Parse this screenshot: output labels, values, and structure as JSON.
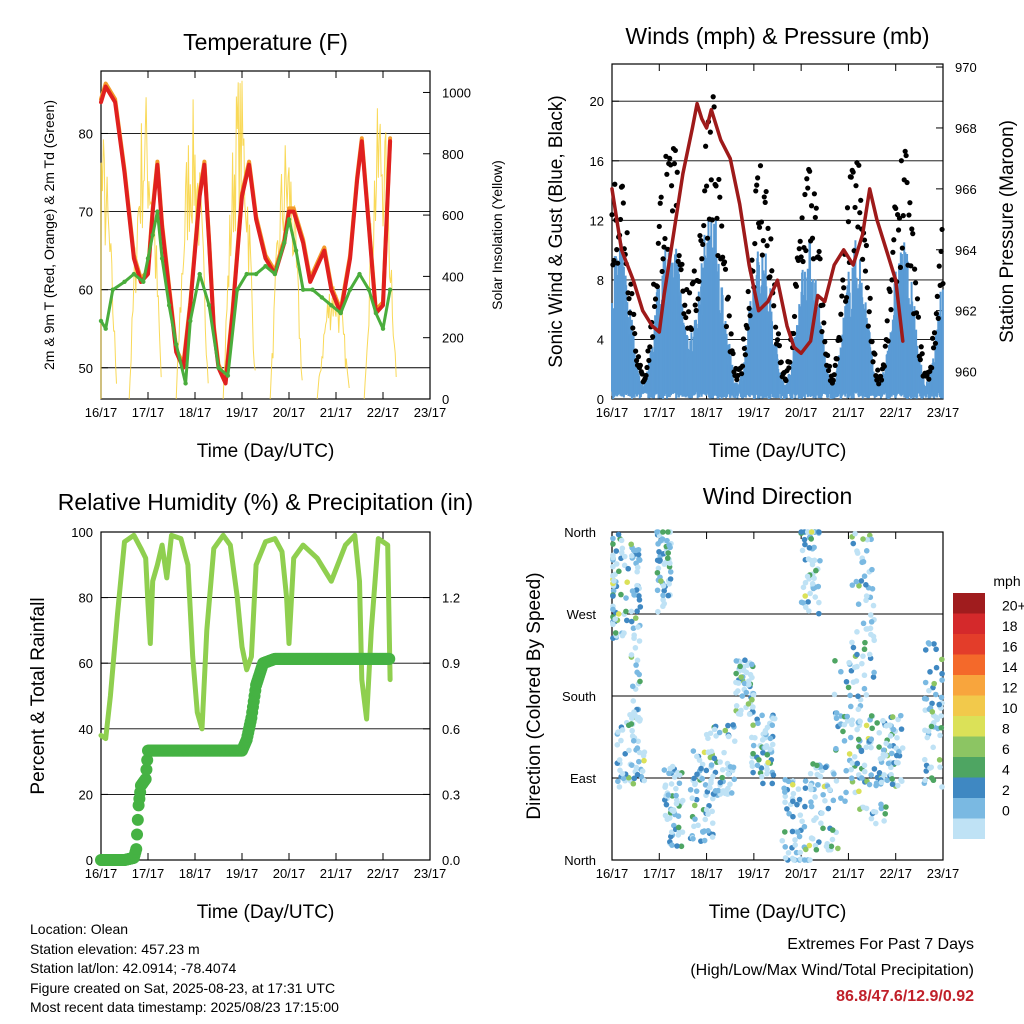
{
  "chart_data": [
    {
      "type": "line",
      "title": "Temperature (F)",
      "xlabel": "Time (Day/UTC)",
      "ylabel": "2m & 9m T (Red, Orange) & 2m Td (Green)",
      "y2label": "Solar Insolation (Yellow)",
      "xticks": [
        "16/17",
        "17/17",
        "18/17",
        "19/17",
        "20/17",
        "21/17",
        "22/17",
        "23/17"
      ],
      "ylim": [
        46,
        88
      ],
      "yticks": [
        50,
        60,
        70,
        80
      ],
      "y2lim": [
        0,
        1070
      ],
      "y2ticks": [
        0,
        200,
        400,
        600,
        800,
        1000
      ],
      "series": [
        {
          "name": "2m T",
          "color": "#e0201f",
          "values": [
            [
              0,
              84
            ],
            [
              0.1,
              86
            ],
            [
              0.3,
              84
            ],
            [
              0.5,
              75
            ],
            [
              0.7,
              64
            ],
            [
              0.85,
              61
            ],
            [
              1.0,
              62
            ],
            [
              1.1,
              70
            ],
            [
              1.2,
              76
            ],
            [
              1.3,
              68
            ],
            [
              1.45,
              60
            ],
            [
              1.6,
              52
            ],
            [
              1.75,
              50
            ],
            [
              1.9,
              58
            ],
            [
              2.1,
              72
            ],
            [
              2.2,
              76
            ],
            [
              2.3,
              66
            ],
            [
              2.4,
              55
            ],
            [
              2.5,
              50
            ],
            [
              2.65,
              48
            ],
            [
              2.8,
              57
            ],
            [
              3.0,
              72
            ],
            [
              3.15,
              76
            ],
            [
              3.3,
              69
            ],
            [
              3.5,
              64
            ],
            [
              3.7,
              62
            ],
            [
              3.9,
              66
            ],
            [
              4.0,
              70
            ],
            [
              4.1,
              70
            ],
            [
              4.3,
              66
            ],
            [
              4.45,
              61
            ],
            [
              4.6,
              63
            ],
            [
              4.75,
              65
            ],
            [
              4.9,
              60
            ],
            [
              5.1,
              57
            ],
            [
              5.3,
              64
            ],
            [
              5.45,
              74
            ],
            [
              5.55,
              79
            ],
            [
              5.7,
              68
            ],
            [
              5.85,
              57
            ],
            [
              6.0,
              58
            ],
            [
              6.1,
              72
            ],
            [
              6.15,
              79
            ]
          ]
        },
        {
          "name": "2m Td",
          "color": "#4aad3c",
          "values": [
            [
              0,
              56
            ],
            [
              0.1,
              55
            ],
            [
              0.25,
              60
            ],
            [
              0.5,
              61
            ],
            [
              0.7,
              62
            ],
            [
              0.9,
              61
            ],
            [
              1.0,
              64
            ],
            [
              1.1,
              67
            ],
            [
              1.2,
              70
            ],
            [
              1.3,
              64
            ],
            [
              1.45,
              58
            ],
            [
              1.6,
              53
            ],
            [
              1.8,
              48
            ],
            [
              1.9,
              56
            ],
            [
              2.1,
              62
            ],
            [
              2.3,
              58
            ],
            [
              2.5,
              50
            ],
            [
              2.7,
              49
            ],
            [
              2.9,
              60
            ],
            [
              3.1,
              62
            ],
            [
              3.3,
              62
            ],
            [
              3.5,
              63
            ],
            [
              3.7,
              62
            ],
            [
              3.9,
              66
            ],
            [
              4.0,
              69
            ],
            [
              4.15,
              65
            ],
            [
              4.3,
              60
            ],
            [
              4.5,
              60
            ],
            [
              4.7,
              59
            ],
            [
              4.9,
              58
            ],
            [
              5.1,
              57
            ],
            [
              5.3,
              60
            ],
            [
              5.5,
              62
            ],
            [
              5.7,
              60
            ],
            [
              5.85,
              57
            ],
            [
              6.0,
              55
            ],
            [
              6.15,
              60
            ]
          ]
        }
      ]
    },
    {
      "type": "line",
      "title": "Winds (mph) & Pressure (mb)",
      "xlabel": "Time (Day/UTC)",
      "ylabel": "Sonic Wind & Gust (Blue, Black)",
      "y2label": "Station Pressure (Maroon)",
      "xticks": [
        "16/17",
        "17/17",
        "18/17",
        "19/17",
        "20/17",
        "21/17",
        "22/17",
        "23/17"
      ],
      "ylim": [
        0,
        22.5
      ],
      "yticks": [
        0,
        4,
        8,
        12,
        16,
        20
      ],
      "y2lim": [
        959.1,
        970.1
      ],
      "y2ticks": [
        960,
        962,
        964,
        966,
        968,
        970
      ],
      "series": [
        {
          "name": "Station Pressure",
          "color": "#9e1a1a",
          "values": [
            [
              0,
              966
            ],
            [
              0.2,
              964
            ],
            [
              0.45,
              963
            ],
            [
              0.65,
              962
            ],
            [
              0.85,
              961.5
            ],
            [
              1.0,
              961.3
            ],
            [
              1.1,
              962.5
            ],
            [
              1.3,
              964.5
            ],
            [
              1.5,
              966.5
            ],
            [
              1.7,
              968
            ],
            [
              1.8,
              968.8
            ],
            [
              1.9,
              968.3
            ],
            [
              2.0,
              968.0
            ],
            [
              2.1,
              968.6
            ],
            [
              2.3,
              967.6
            ],
            [
              2.5,
              967.0
            ],
            [
              2.7,
              965.5
            ],
            [
              2.9,
              963.5
            ],
            [
              3.1,
              962.0
            ],
            [
              3.3,
              962.3
            ],
            [
              3.5,
              963.0
            ],
            [
              3.7,
              961.5
            ],
            [
              3.85,
              960.8
            ],
            [
              4.0,
              960.6
            ],
            [
              4.2,
              961.0
            ],
            [
              4.35,
              962.5
            ],
            [
              4.5,
              962.3
            ],
            [
              4.7,
              963.5
            ],
            [
              4.9,
              964.0
            ],
            [
              5.1,
              963.5
            ],
            [
              5.3,
              964.5
            ],
            [
              5.45,
              966.0
            ],
            [
              5.6,
              965.0
            ],
            [
              5.8,
              964.0
            ],
            [
              6.0,
              963.0
            ],
            [
              6.15,
              961.0
            ]
          ]
        }
      ]
    },
    {
      "type": "line",
      "title": "Relative Humidity (%) & Precipitation (in)",
      "xlabel": "Time (Day/UTC)",
      "ylabel": "Percent & Total Rainfall",
      "xticks": [
        "16/17",
        "17/17",
        "18/17",
        "19/17",
        "20/17",
        "21/17",
        "22/17",
        "23/17"
      ],
      "ylim": [
        0,
        100
      ],
      "yticks": [
        0,
        20,
        40,
        60,
        80,
        100
      ],
      "y2lim": [
        0,
        1.5
      ],
      "y2ticks": [
        "0.0",
        "0.3",
        "0.6",
        "0.9",
        "1.2"
      ],
      "series": [
        {
          "name": "Relative Humidity",
          "color": "#8fcf4f",
          "values": [
            [
              0,
              38
            ],
            [
              0.1,
              37
            ],
            [
              0.2,
              50
            ],
            [
              0.35,
              75
            ],
            [
              0.5,
              97
            ],
            [
              0.7,
              99
            ],
            [
              0.85,
              95
            ],
            [
              0.95,
              92
            ],
            [
              1.0,
              78
            ],
            [
              1.05,
              66
            ],
            [
              1.1,
              85
            ],
            [
              1.2,
              90
            ],
            [
              1.3,
              96
            ],
            [
              1.4,
              86
            ],
            [
              1.5,
              99
            ],
            [
              1.7,
              98
            ],
            [
              1.85,
              90
            ],
            [
              1.95,
              62
            ],
            [
              2.05,
              45
            ],
            [
              2.15,
              40
            ],
            [
              2.25,
              70
            ],
            [
              2.4,
              95
            ],
            [
              2.6,
              99
            ],
            [
              2.75,
              96
            ],
            [
              2.9,
              80
            ],
            [
              3.0,
              65
            ],
            [
              3.1,
              58
            ],
            [
              3.2,
              62
            ],
            [
              3.3,
              90
            ],
            [
              3.5,
              97
            ],
            [
              3.7,
              98
            ],
            [
              3.85,
              94
            ],
            [
              3.95,
              80
            ],
            [
              4.0,
              66
            ],
            [
              4.1,
              92
            ],
            [
              4.3,
              96
            ],
            [
              4.6,
              92
            ],
            [
              4.9,
              85
            ],
            [
              5.2,
              96
            ],
            [
              5.4,
              99
            ],
            [
              5.5,
              85
            ],
            [
              5.55,
              55
            ],
            [
              5.65,
              43
            ],
            [
              5.75,
              70
            ],
            [
              5.9,
              98
            ],
            [
              6.1,
              96
            ],
            [
              6.15,
              55
            ]
          ]
        },
        {
          "name": "Total Rainfall",
          "color": "#45b243",
          "values": [
            [
              0,
              0
            ],
            [
              0.5,
              0
            ],
            [
              0.7,
              0.01
            ],
            [
              0.75,
              0.05
            ],
            [
              0.8,
              0.25
            ],
            [
              0.85,
              0.34
            ],
            [
              0.95,
              0.37
            ],
            [
              1.0,
              0.5
            ],
            [
              1.5,
              0.5
            ],
            [
              2.0,
              0.5
            ],
            [
              2.5,
              0.5
            ],
            [
              3.0,
              0.5
            ],
            [
              3.1,
              0.55
            ],
            [
              3.2,
              0.65
            ],
            [
              3.3,
              0.8
            ],
            [
              3.45,
              0.9
            ],
            [
              3.7,
              0.92
            ],
            [
              4.0,
              0.92
            ],
            [
              4.5,
              0.92
            ],
            [
              5.0,
              0.92
            ],
            [
              5.5,
              0.92
            ],
            [
              6.0,
              0.92
            ],
            [
              6.15,
              0.92
            ]
          ]
        }
      ]
    },
    {
      "type": "scatter",
      "title": "Wind Direction",
      "xlabel": "Time (Day/UTC)",
      "ylabel": "Direction (Colored By Speed)",
      "xticks": [
        "16/17",
        "17/17",
        "18/17",
        "19/17",
        "20/17",
        "21/17",
        "22/17",
        "23/17"
      ],
      "yticks": [
        "North",
        "East",
        "South",
        "West",
        "North"
      ],
      "legend_title": "mph",
      "legend_labels": [
        "20+",
        "18",
        "16",
        "14",
        "12",
        "10",
        "8",
        "6",
        "4",
        "2",
        "0"
      ],
      "legend_colors": [
        "#a01c1e",
        "#d4292b",
        "#e33d2a",
        "#f4692a",
        "#f8a53d",
        "#f2c94b",
        "#dbe158",
        "#8cc563",
        "#4ea562",
        "#3f88c2",
        "#7ab9e2",
        "#bfe2f5"
      ]
    }
  ],
  "footer": {
    "location": "Location: Olean",
    "elevation": "Station elevation: 457.23 m",
    "latlon": "Station lat/lon: 42.0914; -78.4074",
    "created": "Figure created on Sat, 2025-08-23, at 17:31 UTC",
    "timestamp": "Most recent data timestamp: 2025/08/23 17:15:00"
  },
  "extremes": {
    "title": "Extremes For Past 7 Days",
    "subtitle": "(High/Low/Max Wind/Total Precipitation)",
    "values": "86.8/47.6/12.9/0.92"
  }
}
